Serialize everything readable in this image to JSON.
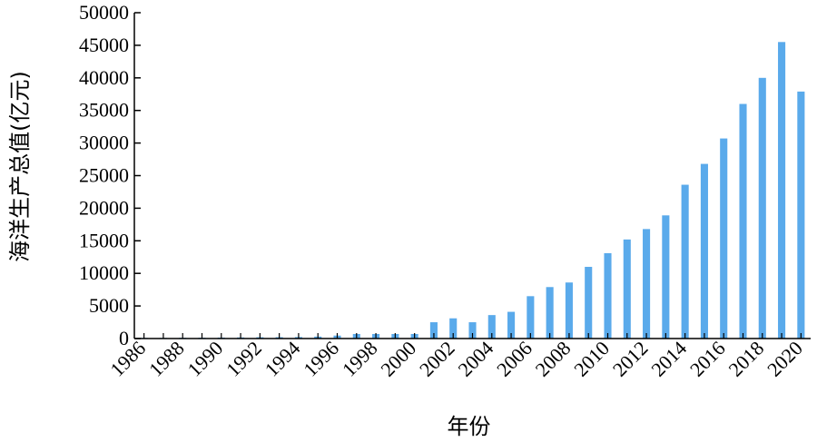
{
  "chart_data": {
    "type": "bar",
    "xlabel": "年份",
    "ylabel": "海洋生产总值(亿元)",
    "ylim": [
      0,
      50000
    ],
    "yticks": [
      0,
      5000,
      10000,
      15000,
      20000,
      25000,
      30000,
      35000,
      40000,
      45000,
      50000
    ],
    "xtick_labels": [
      "1986",
      "1988",
      "1990",
      "1992",
      "1994",
      "1996",
      "1998",
      "2000",
      "2002",
      "2004",
      "2006",
      "2008",
      "2010",
      "2012",
      "2014",
      "2016",
      "2018",
      "2020"
    ],
    "categories": [
      "1986",
      "1987",
      "1988",
      "1989",
      "1990",
      "1991",
      "1992",
      "1993",
      "1994",
      "1995",
      "1996",
      "1997",
      "1998",
      "1999",
      "2000",
      "2001",
      "2002",
      "2003",
      "2004",
      "2005",
      "2006",
      "2007",
      "2008",
      "2009",
      "2010",
      "2011",
      "2012",
      "2013",
      "2014",
      "2015",
      "2016",
      "2017",
      "2018",
      "2019",
      "2020"
    ],
    "values": [
      100,
      100,
      120,
      130,
      150,
      170,
      200,
      210,
      230,
      300,
      450,
      700,
      700,
      700,
      700,
      2500,
      3100,
      2500,
      3600,
      4100,
      6500,
      7900,
      8600,
      11000,
      13100,
      15200,
      16800,
      18900,
      23600,
      26800,
      30700,
      36000,
      40000,
      45500,
      37900
    ],
    "bar_color": "#5aaaeb",
    "grid": false
  }
}
